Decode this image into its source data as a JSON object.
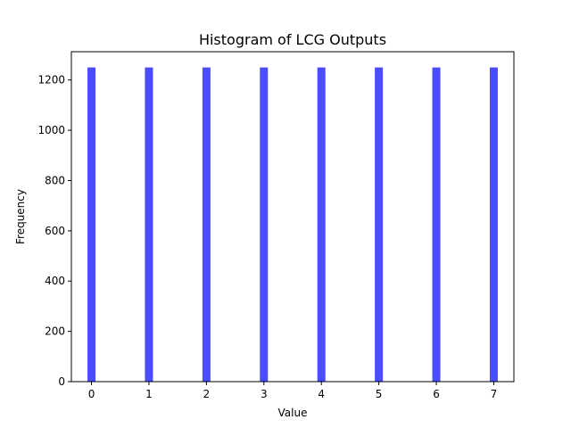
{
  "chart_data": {
    "type": "bar",
    "title": "Histogram of LCG Outputs",
    "xlabel": "Value",
    "ylabel": "Frequency",
    "categories": [
      0,
      1,
      2,
      3,
      4,
      5,
      6,
      7
    ],
    "values": [
      1250,
      1250,
      1250,
      1250,
      1250,
      1250,
      1250,
      1250
    ],
    "xlim": [
      -0.35,
      7.35
    ],
    "ylim": [
      0,
      1312.5
    ],
    "x_ticks": [
      "0",
      "1",
      "2",
      "3",
      "4",
      "5",
      "6",
      "7"
    ],
    "y_ticks": [
      "0",
      "200",
      "400",
      "600",
      "800",
      "1000",
      "1200"
    ],
    "bar_color": "#4c4cff",
    "bar_width": 0.14,
    "grid": false
  }
}
